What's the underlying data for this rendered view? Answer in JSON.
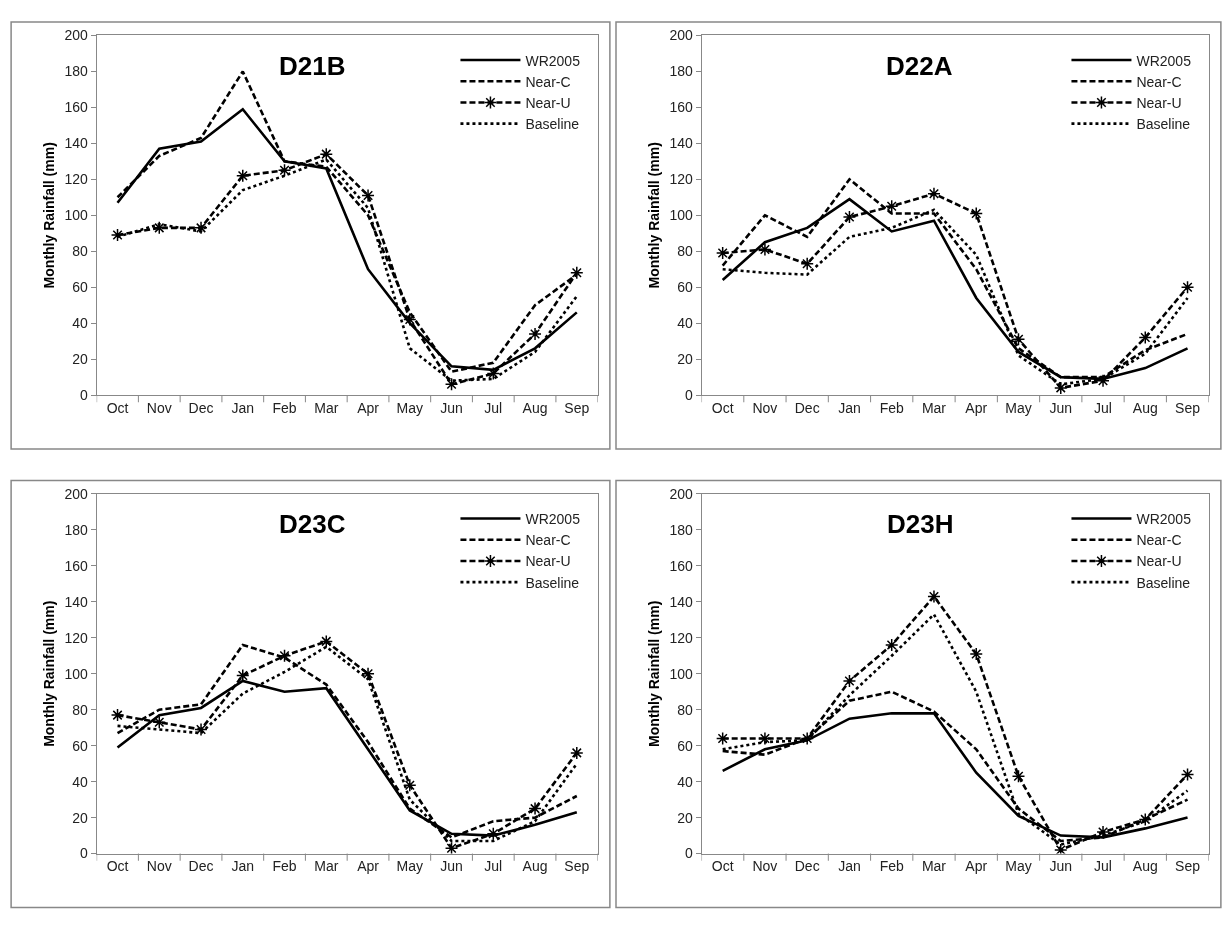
{
  "chart_data": [
    {
      "type": "line",
      "title": "D21B",
      "ylabel": "Monthly Rainfall (mm)",
      "categories": [
        "Oct",
        "Nov",
        "Dec",
        "Jan",
        "Feb",
        "Mar",
        "Apr",
        "May",
        "Jun",
        "Jul",
        "Aug",
        "Sep"
      ],
      "ylim": [
        0,
        200
      ],
      "yticks": [
        0,
        20,
        40,
        60,
        80,
        100,
        120,
        140,
        160,
        180,
        200
      ],
      "grid": false,
      "legend": "top right",
      "series": [
        {
          "name": "WR2005",
          "color": "#000000",
          "line_style": "solid",
          "marker": "none",
          "values": [
            107,
            137,
            141,
            159,
            130,
            126,
            70,
            40,
            16,
            14,
            26,
            46
          ]
        },
        {
          "name": "Near-C",
          "color": "#000000",
          "line_style": "dashed",
          "marker": "none",
          "values": [
            110,
            133,
            143,
            180,
            130,
            127,
            100,
            46,
            13,
            18,
            50,
            67
          ]
        },
        {
          "name": "Near-U",
          "color": "#000000",
          "line_style": "dashed",
          "marker": "cross",
          "values": [
            89,
            93,
            93,
            122,
            125,
            134,
            111,
            42,
            6,
            12,
            34,
            68
          ]
        },
        {
          "name": "Baseline",
          "color": "#000000",
          "line_style": "dotted",
          "marker": "none",
          "values": [
            88,
            95,
            91,
            114,
            122,
            131,
            104,
            26,
            8,
            9,
            24,
            55
          ]
        }
      ]
    },
    {
      "type": "line",
      "title": "D22A",
      "ylabel": "Monthly Rainfall (mm)",
      "categories": [
        "Oct",
        "Nov",
        "Dec",
        "Jan",
        "Feb",
        "Mar",
        "Apr",
        "May",
        "Jun",
        "Jul",
        "Aug",
        "Sep"
      ],
      "ylim": [
        0,
        200
      ],
      "yticks": [
        0,
        20,
        40,
        60,
        80,
        100,
        120,
        140,
        160,
        180,
        200
      ],
      "grid": false,
      "legend": "top right",
      "series": [
        {
          "name": "WR2005",
          "color": "#000000",
          "line_style": "solid",
          "marker": "none",
          "values": [
            64,
            85,
            93,
            109,
            91,
            97,
            54,
            24,
            10,
            9,
            15,
            26
          ]
        },
        {
          "name": "Near-C",
          "color": "#000000",
          "line_style": "dashed",
          "marker": "none",
          "values": [
            72,
            100,
            88,
            120,
            101,
            101,
            70,
            26,
            10,
            10,
            25,
            34
          ]
        },
        {
          "name": "Near-U",
          "color": "#000000",
          "line_style": "dashed",
          "marker": "cross",
          "values": [
            79,
            81,
            73,
            99,
            105,
            112,
            101,
            31,
            4,
            8,
            32,
            60
          ]
        },
        {
          "name": "Baseline",
          "color": "#000000",
          "line_style": "dotted",
          "marker": "none",
          "values": [
            70,
            68,
            67,
            88,
            93,
            103,
            78,
            22,
            6,
            9,
            23,
            54
          ]
        }
      ]
    },
    {
      "type": "line",
      "title": "D23C",
      "ylabel": "Monthly Rainfall (mm)",
      "categories": [
        "Oct",
        "Nov",
        "Dec",
        "Jan",
        "Feb",
        "Mar",
        "Apr",
        "May",
        "Jun",
        "Jul",
        "Aug",
        "Sep"
      ],
      "ylim": [
        0,
        200
      ],
      "yticks": [
        0,
        20,
        40,
        60,
        80,
        100,
        120,
        140,
        160,
        180,
        200
      ],
      "grid": false,
      "legend": "top right",
      "series": [
        {
          "name": "WR2005",
          "color": "#000000",
          "line_style": "solid",
          "marker": "none",
          "values": [
            59,
            77,
            81,
            96,
            90,
            92,
            58,
            24,
            11,
            10,
            16,
            23
          ]
        },
        {
          "name": "Near-C",
          "color": "#000000",
          "line_style": "dashed",
          "marker": "none",
          "values": [
            67,
            80,
            83,
            116,
            109,
            94,
            62,
            25,
            9,
            18,
            20,
            32
          ]
        },
        {
          "name": "Near-U",
          "color": "#000000",
          "line_style": "dashed",
          "marker": "cross",
          "values": [
            77,
            73,
            69,
            99,
            110,
            118,
            100,
            38,
            3,
            11,
            25,
            56
          ]
        },
        {
          "name": "Baseline",
          "color": "#000000",
          "line_style": "dotted",
          "marker": "none",
          "values": [
            71,
            69,
            67,
            89,
            101,
            115,
            97,
            30,
            7,
            7,
            18,
            50
          ]
        }
      ]
    },
    {
      "type": "line",
      "title": "D23H",
      "ylabel": "Monthly Rainfall (mm)",
      "categories": [
        "Oct",
        "Nov",
        "Dec",
        "Jan",
        "Feb",
        "Mar",
        "Apr",
        "May",
        "Jun",
        "Jul",
        "Aug",
        "Sep"
      ],
      "ylim": [
        0,
        200
      ],
      "yticks": [
        0,
        20,
        40,
        60,
        80,
        100,
        120,
        140,
        160,
        180,
        200
      ],
      "grid": false,
      "legend": "top right",
      "series": [
        {
          "name": "WR2005",
          "color": "#000000",
          "line_style": "solid",
          "marker": "none",
          "values": [
            46,
            58,
            63,
            75,
            78,
            78,
            45,
            21,
            10,
            9,
            14,
            20
          ]
        },
        {
          "name": "Near-C",
          "color": "#000000",
          "line_style": "dashed",
          "marker": "none",
          "values": [
            57,
            55,
            64,
            85,
            90,
            79,
            58,
            25,
            7,
            9,
            19,
            30
          ]
        },
        {
          "name": "Near-U",
          "color": "#000000",
          "line_style": "dashed",
          "marker": "cross",
          "values": [
            64,
            64,
            64,
            96,
            116,
            143,
            111,
            43,
            2,
            12,
            19,
            44
          ]
        },
        {
          "name": "Baseline",
          "color": "#000000",
          "line_style": "dotted",
          "marker": "none",
          "values": [
            58,
            62,
            63,
            88,
            110,
            133,
            90,
            22,
            5,
            10,
            18,
            35
          ]
        }
      ]
    }
  ]
}
